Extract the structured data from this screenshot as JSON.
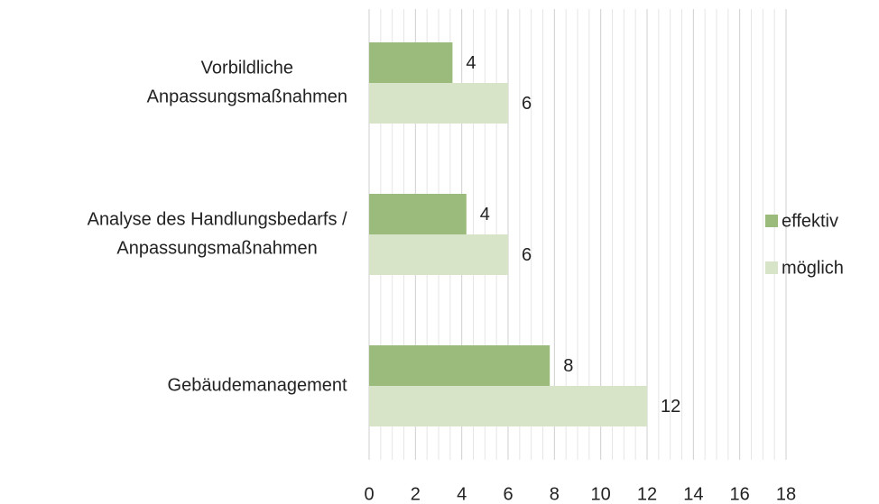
{
  "chart_data": {
    "type": "barh",
    "categories": [
      [
        "Vorbildliche",
        "Anpassungsmaßnahmen"
      ],
      [
        "Analyse des Handlungsbedarfs /",
        "Anpassungsmaßnahmen"
      ],
      [
        "Gebäudemanagement"
      ]
    ],
    "series": [
      {
        "name": "effektiv",
        "color": "#9bbb7d",
        "values": [
          3.6,
          4.2,
          7.8
        ],
        "value_labels": [
          "4",
          "4",
          "8"
        ]
      },
      {
        "name": "möglich",
        "color": "#d8e4c8",
        "values": [
          6,
          6,
          12
        ]
      }
    ],
    "xlim": [
      0,
      18
    ],
    "xticks": [
      0,
      2,
      4,
      6,
      8,
      10,
      12,
      14,
      16,
      18
    ],
    "grid": true,
    "legend": "right"
  }
}
